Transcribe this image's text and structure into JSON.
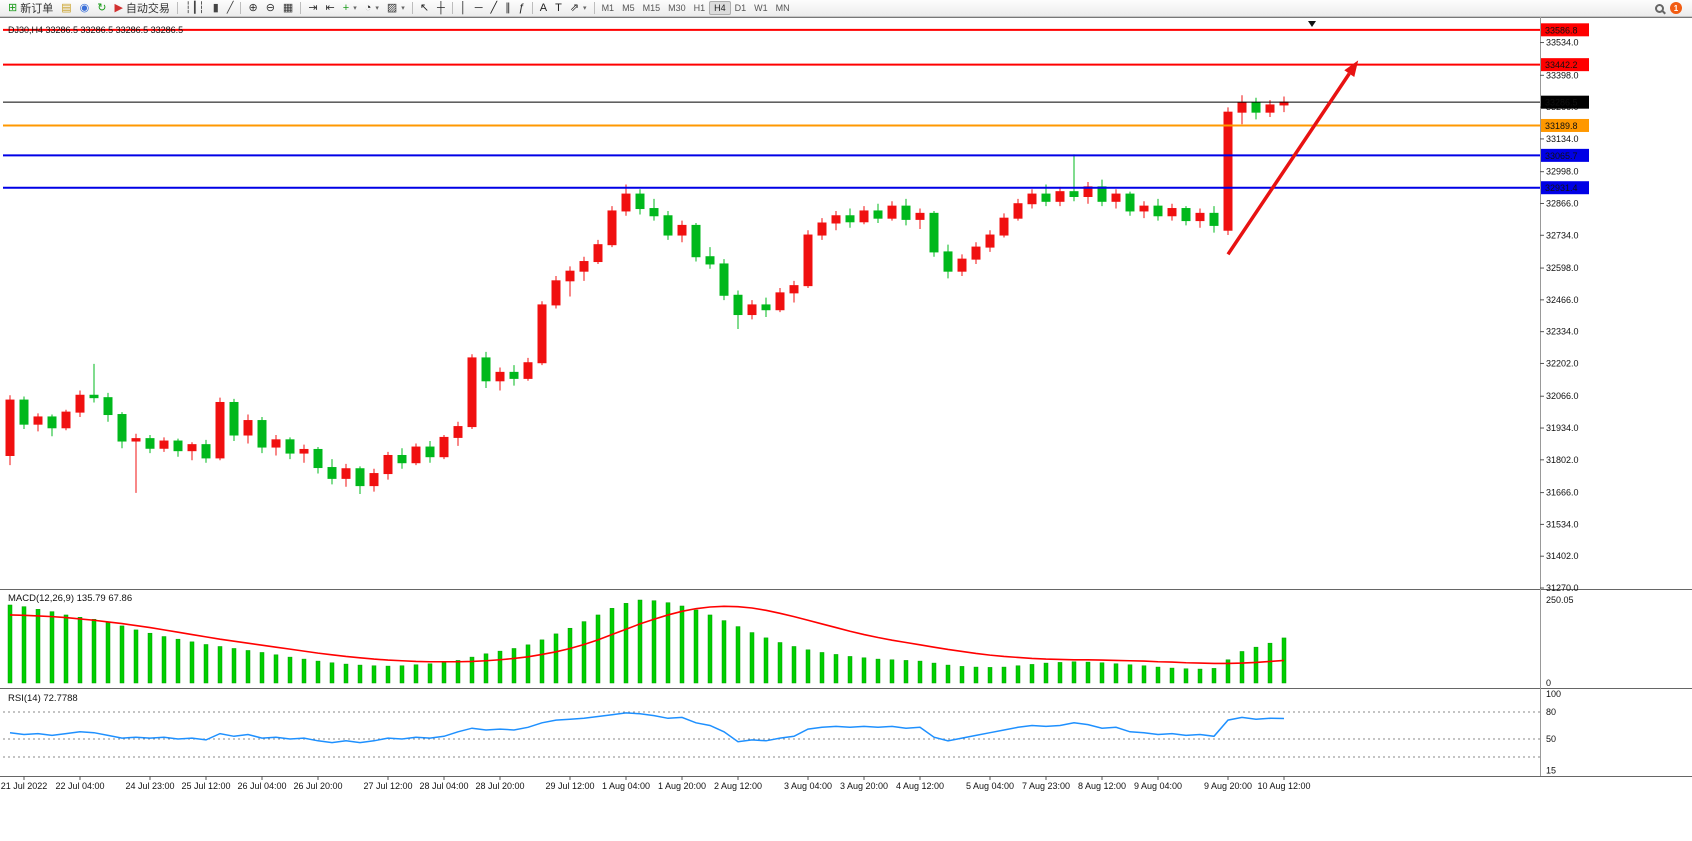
{
  "toolbar": {
    "groups": [
      {
        "items": [
          {
            "name": "new-order-button",
            "icon": "new-order-icon",
            "glyph": "⊞",
            "color": "#189a18",
            "label": "新订单"
          },
          {
            "name": "market-watch-button",
            "icon": "market-watch-icon",
            "glyph": "▤",
            "color": "#c79c1d"
          },
          {
            "name": "navigator-button",
            "icon": "navigator-icon",
            "glyph": "◉",
            "color": "#3a6fd8"
          },
          {
            "name": "refresh-button",
            "icon": "refresh-icon",
            "glyph": "↻",
            "color": "#189a18"
          },
          {
            "name": "auto-trading-button",
            "icon": "auto-trading-icon",
            "glyph": "▶",
            "color": "#d23030",
            "label": "自动交易"
          }
        ]
      },
      {
        "items": [
          {
            "name": "ohlc-bars-button",
            "icon": "ohlc-bars-icon",
            "glyph": "┆┃┆",
            "color": "#444"
          },
          {
            "name": "candlestick-button",
            "icon": "candlestick-icon",
            "glyph": "▮",
            "color": "#444"
          },
          {
            "name": "line-chart-button",
            "icon": "line-chart-icon",
            "glyph": "╱",
            "color": "#444"
          }
        ]
      },
      {
        "items": [
          {
            "name": "zoom-in-button",
            "icon": "zoom-in-icon",
            "glyph": "⊕",
            "color": "#333"
          },
          {
            "name": "zoom-out-button",
            "icon": "zoom-out-icon",
            "glyph": "⊖",
            "color": "#333"
          },
          {
            "name": "tile-windows-button",
            "icon": "tile-windows-icon",
            "glyph": "▦",
            "color": "#333"
          }
        ]
      },
      {
        "items": [
          {
            "name": "auto-scroll-button",
            "icon": "auto-scroll-icon",
            "glyph": "⇥",
            "color": "#333"
          },
          {
            "name": "chart-shift-button",
            "icon": "chart-shift-icon",
            "glyph": "⇤",
            "color": "#333"
          },
          {
            "name": "add-indicator-button",
            "icon": "add-indicator-icon",
            "glyph": "+",
            "color": "#189a18",
            "caret": true
          },
          {
            "name": "period-button",
            "icon": "clock-icon",
            "glyph": "◔",
            "color": "#333",
            "caret": true
          },
          {
            "name": "template-button",
            "icon": "template-icon",
            "glyph": "▨",
            "color": "#333",
            "caret": true
          }
        ]
      },
      {
        "items": [
          {
            "name": "cursor-button",
            "icon": "cursor-arrow-icon",
            "glyph": "↖",
            "color": "#222"
          },
          {
            "name": "crosshair-button",
            "icon": "crosshair-icon",
            "glyph": "┼",
            "color": "#222"
          }
        ]
      },
      {
        "items": [
          {
            "name": "vertical-line-button",
            "icon": "vertical-line-icon",
            "glyph": "│",
            "color": "#222"
          },
          {
            "name": "horizontal-line-button",
            "icon": "horizontal-line-icon",
            "glyph": "─",
            "color": "#222"
          },
          {
            "name": "trendline-button",
            "icon": "trendline-icon",
            "glyph": "╱",
            "color": "#222"
          },
          {
            "name": "channel-button",
            "icon": "channel-icon",
            "glyph": "∥",
            "color": "#222"
          },
          {
            "name": "fibonacci-button",
            "icon": "fibonacci-icon",
            "glyph": "ƒ",
            "color": "#222"
          }
        ]
      },
      {
        "items": [
          {
            "name": "text-button",
            "icon": "text-icon",
            "glyph": "A",
            "color": "#222"
          },
          {
            "name": "text-label-button",
            "icon": "text-label-icon",
            "glyph": "T",
            "color": "#222"
          },
          {
            "name": "arrows-button",
            "icon": "arrow-shapes-icon",
            "glyph": "⇗",
            "color": "#222",
            "caret": true
          }
        ]
      }
    ],
    "timeframes": [
      "M1",
      "M5",
      "M15",
      "M30",
      "H1",
      "H4",
      "D1",
      "W1",
      "MN"
    ],
    "active_timeframe": "H4",
    "notification_count": "1"
  },
  "chart_data": {
    "type": "candlestick",
    "symbol_overlay": "DJ30,H4 33286.5 33286.5 33286.5 33286.5",
    "colors": {
      "bull": "#f01010",
      "bear": "#00b81c",
      "macd_hist": "#00ce00",
      "macd_signal": "#ff0000",
      "rsi_line": "#1e90ff"
    },
    "candles": [
      [
        31820,
        32070,
        31780,
        32050
      ],
      [
        32050,
        32065,
        31930,
        31950
      ],
      [
        31950,
        31995,
        31920,
        31980
      ],
      [
        31980,
        31990,
        31900,
        31935
      ],
      [
        31935,
        32010,
        31925,
        32000
      ],
      [
        32000,
        32090,
        31980,
        32070
      ],
      [
        32070,
        32200,
        32040,
        32060
      ],
      [
        32060,
        32080,
        31960,
        31990
      ],
      [
        31990,
        32000,
        31850,
        31880
      ],
      [
        31880,
        31910,
        31665,
        31890
      ],
      [
        31890,
        31905,
        31830,
        31850
      ],
      [
        31850,
        31895,
        31835,
        31880
      ],
      [
        31880,
        31890,
        31815,
        31840
      ],
      [
        31840,
        31875,
        31800,
        31865
      ],
      [
        31865,
        31885,
        31790,
        31810
      ],
      [
        31810,
        32060,
        31800,
        32040
      ],
      [
        32040,
        32055,
        31880,
        31905
      ],
      [
        31905,
        31990,
        31870,
        31965
      ],
      [
        31965,
        31980,
        31830,
        31855
      ],
      [
        31855,
        31905,
        31820,
        31885
      ],
      [
        31885,
        31895,
        31805,
        31830
      ],
      [
        31830,
        31865,
        31790,
        31845
      ],
      [
        31845,
        31855,
        31745,
        31770
      ],
      [
        31770,
        31805,
        31700,
        31725
      ],
      [
        31725,
        31785,
        31690,
        31765
      ],
      [
        31765,
        31775,
        31660,
        31695
      ],
      [
        31695,
        31765,
        31670,
        31745
      ],
      [
        31745,
        31835,
        31720,
        31820
      ],
      [
        31820,
        31850,
        31765,
        31790
      ],
      [
        31790,
        31870,
        31780,
        31855
      ],
      [
        31855,
        31880,
        31790,
        31815
      ],
      [
        31815,
        31905,
        31805,
        31895
      ],
      [
        31895,
        31960,
        31860,
        31940
      ],
      [
        31940,
        32240,
        31930,
        32225
      ],
      [
        32225,
        32250,
        32100,
        32130
      ],
      [
        32130,
        32185,
        32090,
        32165
      ],
      [
        32165,
        32195,
        32110,
        32140
      ],
      [
        32140,
        32225,
        32130,
        32205
      ],
      [
        32205,
        32460,
        32195,
        32445
      ],
      [
        32445,
        32565,
        32430,
        32545
      ],
      [
        32545,
        32605,
        32480,
        32585
      ],
      [
        32585,
        32645,
        32545,
        32625
      ],
      [
        32625,
        32715,
        32615,
        32695
      ],
      [
        32695,
        32855,
        32685,
        32835
      ],
      [
        32835,
        32945,
        32815,
        32905
      ],
      [
        32905,
        32925,
        32820,
        32845
      ],
      [
        32845,
        32885,
        32795,
        32815
      ],
      [
        32815,
        32835,
        32715,
        32735
      ],
      [
        32735,
        32795,
        32705,
        32775
      ],
      [
        32775,
        32785,
        32625,
        32645
      ],
      [
        32645,
        32685,
        32595,
        32615
      ],
      [
        32615,
        32635,
        32465,
        32485
      ],
      [
        32485,
        32505,
        32345,
        32405
      ],
      [
        32405,
        32465,
        32385,
        32445
      ],
      [
        32445,
        32475,
        32395,
        32425
      ],
      [
        32425,
        32515,
        32415,
        32495
      ],
      [
        32495,
        32545,
        32455,
        32525
      ],
      [
        32525,
        32755,
        32515,
        32735
      ],
      [
        32735,
        32805,
        32715,
        32785
      ],
      [
        32785,
        32835,
        32755,
        32815
      ],
      [
        32815,
        32845,
        32765,
        32790
      ],
      [
        32790,
        32855,
        32780,
        32835
      ],
      [
        32835,
        32865,
        32785,
        32805
      ],
      [
        32805,
        32875,
        32795,
        32855
      ],
      [
        32855,
        32885,
        32775,
        32800
      ],
      [
        32800,
        32845,
        32760,
        32825
      ],
      [
        32825,
        32835,
        32645,
        32665
      ],
      [
        32665,
        32695,
        32555,
        32585
      ],
      [
        32585,
        32655,
        32565,
        32635
      ],
      [
        32635,
        32705,
        32615,
        32685
      ],
      [
        32685,
        32755,
        32665,
        32735
      ],
      [
        32735,
        32825,
        32725,
        32805
      ],
      [
        32805,
        32885,
        32795,
        32865
      ],
      [
        32865,
        32925,
        32845,
        32905
      ],
      [
        32905,
        32945,
        32855,
        32875
      ],
      [
        32875,
        32935,
        32855,
        32915
      ],
      [
        32915,
        33070,
        32875,
        32895
      ],
      [
        32895,
        32955,
        32865,
        32935
      ],
      [
        32935,
        32965,
        32855,
        32875
      ],
      [
        32875,
        32925,
        32845,
        32905
      ],
      [
        32905,
        32915,
        32815,
        32835
      ],
      [
        32835,
        32875,
        32805,
        32855
      ],
      [
        32855,
        32885,
        32795,
        32815
      ],
      [
        32815,
        32865,
        32795,
        32845
      ],
      [
        32845,
        32855,
        32775,
        32795
      ],
      [
        32795,
        32845,
        32765,
        32825
      ],
      [
        32825,
        32855,
        32745,
        32775
      ],
      [
        32755,
        33265,
        32735,
        33245
      ],
      [
        33245,
        33315,
        33195,
        33285
      ],
      [
        33285,
        33305,
        33215,
        33245
      ],
      [
        33245,
        33295,
        33225,
        33275
      ],
      [
        33275,
        33310,
        33245,
        33286.5
      ]
    ],
    "levels": [
      {
        "name": "resistance-line-upper",
        "value": 33586.8,
        "label": "33586.8",
        "color": "#ff0000",
        "width": 2
      },
      {
        "name": "resistance-line-target",
        "value": 33442.2,
        "label": "33442.2",
        "color": "#ff0000",
        "width": 2
      },
      {
        "name": "bid-price-line",
        "value": 33286.5,
        "label": "33286.5",
        "color": "#000000",
        "width": 1
      },
      {
        "name": "level-line-orange",
        "value": 33189.8,
        "label": "33189.8",
        "color": "#ff9800",
        "width": 2
      },
      {
        "name": "support-line-blue-upper",
        "value": 33065.7,
        "label": "33065.7",
        "color": "#0000e6",
        "width": 2
      },
      {
        "name": "support-line-blue-lower",
        "value": 32931.4,
        "label": "32931.4",
        "color": "#0000e6",
        "width": 2
      }
    ],
    "axis": {
      "price_ticks": [
        "33534.0",
        "33398.0",
        "33266.0",
        "33134.0",
        "32998.0",
        "32866.0",
        "32734.0",
        "32598.0",
        "32466.0",
        "32334.0",
        "32202.0",
        "32066.0",
        "31934.0",
        "31802.0",
        "31666.0",
        "31534.0",
        "31402.0",
        "31270.0"
      ],
      "time_labels": [
        [
          "21 Jul 2022",
          1
        ],
        [
          "22 Jul 04:00",
          5
        ],
        [
          "24 Jul 23:00",
          10
        ],
        [
          "25 Jul 12:00",
          14
        ],
        [
          "26 Jul 04:00",
          18
        ],
        [
          "26 Jul 20:00",
          22
        ],
        [
          "27 Jul 12:00",
          27
        ],
        [
          "28 Jul 04:00",
          31
        ],
        [
          "28 Jul 20:00",
          35
        ],
        [
          "29 Jul 12:00",
          40
        ],
        [
          "1 Aug 04:00",
          44
        ],
        [
          "1 Aug 20:00",
          48
        ],
        [
          "2 Aug 12:00",
          52
        ],
        [
          "3 Aug 04:00",
          57
        ],
        [
          "3 Aug 20:00",
          61
        ],
        [
          "4 Aug 12:00",
          65
        ],
        [
          "5 Aug 04:00",
          70
        ],
        [
          "7 Aug 23:00",
          74
        ],
        [
          "8 Aug 12:00",
          78
        ],
        [
          "9 Aug 04:00",
          82
        ],
        [
          "9 Aug 20:00",
          87
        ],
        [
          "10 Aug 12:00",
          91
        ]
      ]
    },
    "macd": {
      "title": "MACD(12,26,9) 135.79 67.86",
      "axis_max_label": "250.05",
      "axis_zero_label": "0",
      "histogram": [
        235,
        230,
        222,
        215,
        205,
        198,
        192,
        183,
        172,
        160,
        150,
        140,
        132,
        124,
        116,
        110,
        104,
        98,
        92,
        85,
        78,
        72,
        66,
        61,
        57,
        54,
        52,
        51,
        52,
        55,
        58,
        62,
        68,
        78,
        88,
        96,
        104,
        115,
        130,
        148,
        165,
        185,
        205,
        225,
        240,
        250,
        248,
        242,
        232,
        220,
        205,
        188,
        170,
        152,
        136,
        122,
        110,
        100,
        92,
        86,
        80,
        76,
        72,
        70,
        68,
        66,
        60,
        54,
        50,
        48,
        47,
        48,
        52,
        56,
        60,
        62,
        64,
        63,
        61,
        58,
        55,
        52,
        48,
        45,
        43,
        42,
        44,
        70,
        95,
        108,
        120,
        135.79
      ],
      "signal": [
        205,
        204,
        202,
        200,
        197,
        193,
        189,
        184,
        179,
        173,
        167,
        160,
        153,
        146,
        139,
        132,
        126,
        120,
        114,
        108,
        102,
        96,
        90,
        85,
        80,
        76,
        72,
        69,
        67,
        65,
        64,
        64,
        64,
        65,
        67,
        70,
        74,
        79,
        86,
        94,
        104,
        116,
        130,
        146,
        162,
        178,
        192,
        205,
        216,
        224,
        229,
        231,
        230,
        226,
        219,
        210,
        200,
        189,
        178,
        167,
        156,
        146,
        137,
        129,
        122,
        115,
        108,
        101,
        95,
        89,
        84,
        80,
        77,
        74,
        72,
        71,
        70,
        70,
        69,
        68,
        67,
        66,
        64,
        63,
        61,
        60,
        59,
        59,
        60,
        62,
        65,
        67.86
      ]
    },
    "rsi": {
      "title": "RSI(14) 72.7788",
      "axis_ticks": [
        "100",
        "80",
        "50",
        "15"
      ],
      "levels_dashed": [
        80,
        50,
        30
      ],
      "values": [
        57,
        55,
        56,
        54,
        56,
        58,
        57,
        54,
        51,
        52,
        51,
        52,
        50,
        51,
        49,
        56,
        53,
        55,
        51,
        52,
        50,
        51,
        48,
        46,
        48,
        46,
        48,
        51,
        50,
        52,
        51,
        53,
        58,
        62,
        60,
        61,
        60,
        63,
        68,
        71,
        72,
        73,
        75,
        77,
        79,
        78,
        76,
        73,
        74,
        68,
        65,
        58,
        47,
        49,
        48,
        51,
        53,
        61,
        63,
        64,
        63,
        64,
        63,
        64,
        62,
        63,
        52,
        48,
        51,
        54,
        57,
        60,
        63,
        65,
        64,
        65,
        68,
        66,
        62,
        63,
        58,
        57,
        55,
        56,
        54,
        55,
        53,
        71,
        74,
        72,
        73,
        72.7788
      ]
    },
    "annotations": [
      {
        "type": "arrow",
        "name": "trend-arrow",
        "from_index": 87,
        "from_price": 32655,
        "to_index": 96.3,
        "to_price": 33460,
        "color": "#e81212",
        "width": 3.5
      },
      {
        "type": "shift-marker",
        "name": "chart-shift-marker",
        "index": 93
      }
    ]
  }
}
